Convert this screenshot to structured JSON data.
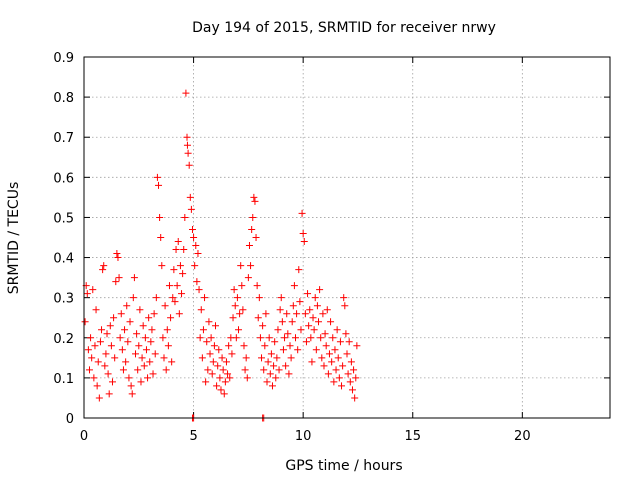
{
  "chart_data": {
    "type": "scatter",
    "title": "Day 194 of 2015, SRMTID for receiver nrwy",
    "xlabel": "GPS time / hours",
    "ylabel": "SRMTID / TECUs",
    "xlim": [
      0,
      24
    ],
    "ylim": [
      0,
      0.9
    ],
    "xticks": [
      0,
      5,
      10,
      15,
      20
    ],
    "xtick_labels": [
      "0",
      "5",
      "10",
      "15",
      "20"
    ],
    "yticks": [
      0,
      0.1,
      0.2,
      0.3,
      0.4,
      0.5,
      0.6,
      0.7,
      0.8,
      0.9
    ],
    "ytick_labels": [
      "0",
      "0.1",
      "0.2",
      "0.3",
      "0.4",
      "0.5",
      "0.6",
      "0.7",
      "0.8",
      "0.9"
    ],
    "grid": true,
    "marker": "+",
    "color": "#ff0000",
    "series": [
      {
        "name": "SRMTID",
        "points": [
          [
            0.05,
            0.24
          ],
          [
            0.1,
            0.33
          ],
          [
            0.15,
            0.31
          ],
          [
            0.2,
            0.17
          ],
          [
            0.25,
            0.12
          ],
          [
            0.3,
            0.2
          ],
          [
            0.35,
            0.15
          ],
          [
            0.4,
            0.32
          ],
          [
            0.45,
            0.1
          ],
          [
            0.5,
            0.18
          ],
          [
            0.55,
            0.27
          ],
          [
            0.6,
            0.08
          ],
          [
            0.65,
            0.14
          ],
          [
            0.7,
            0.05
          ],
          [
            0.75,
            0.19
          ],
          [
            0.8,
            0.22
          ],
          [
            0.85,
            0.37
          ],
          [
            0.9,
            0.38
          ],
          [
            0.95,
            0.13
          ],
          [
            1.0,
            0.16
          ],
          [
            1.05,
            0.21
          ],
          [
            1.1,
            0.11
          ],
          [
            1.15,
            0.06
          ],
          [
            1.2,
            0.23
          ],
          [
            1.25,
            0.18
          ],
          [
            1.3,
            0.09
          ],
          [
            1.35,
            0.25
          ],
          [
            1.4,
            0.15
          ],
          [
            1.45,
            0.34
          ],
          [
            1.5,
            0.41
          ],
          [
            1.55,
            0.4
          ],
          [
            1.6,
            0.35
          ],
          [
            1.65,
            0.2
          ],
          [
            1.7,
            0.26
          ],
          [
            1.75,
            0.17
          ],
          [
            1.8,
            0.12
          ],
          [
            1.85,
            0.22
          ],
          [
            1.9,
            0.14
          ],
          [
            1.95,
            0.28
          ],
          [
            2.0,
            0.19
          ],
          [
            2.05,
            0.1
          ],
          [
            2.1,
            0.24
          ],
          [
            2.15,
            0.08
          ],
          [
            2.2,
            0.06
          ],
          [
            2.25,
            0.3
          ],
          [
            2.3,
            0.35
          ],
          [
            2.35,
            0.16
          ],
          [
            2.4,
            0.21
          ],
          [
            2.45,
            0.12
          ],
          [
            2.5,
            0.18
          ],
          [
            2.55,
            0.27
          ],
          [
            2.6,
            0.09
          ],
          [
            2.65,
            0.15
          ],
          [
            2.7,
            0.23
          ],
          [
            2.75,
            0.13
          ],
          [
            2.8,
            0.2
          ],
          [
            2.85,
            0.17
          ],
          [
            2.9,
            0.1
          ],
          [
            2.95,
            0.25
          ],
          [
            3.0,
            0.14
          ],
          [
            3.05,
            0.19
          ],
          [
            3.1,
            0.22
          ],
          [
            3.15,
            0.11
          ],
          [
            3.2,
            0.26
          ],
          [
            3.25,
            0.16
          ],
          [
            3.3,
            0.3
          ],
          [
            3.35,
            0.6
          ],
          [
            3.4,
            0.58
          ],
          [
            3.45,
            0.5
          ],
          [
            3.5,
            0.45
          ],
          [
            3.55,
            0.38
          ],
          [
            3.6,
            0.2
          ],
          [
            3.65,
            0.15
          ],
          [
            3.7,
            0.28
          ],
          [
            3.75,
            0.12
          ],
          [
            3.8,
            0.22
          ],
          [
            3.85,
            0.18
          ],
          [
            3.9,
            0.33
          ],
          [
            3.95,
            0.25
          ],
          [
            4.0,
            0.14
          ],
          [
            4.05,
            0.3
          ],
          [
            4.1,
            0.37
          ],
          [
            4.15,
            0.29
          ],
          [
            4.2,
            0.42
          ],
          [
            4.25,
            0.33
          ],
          [
            4.3,
            0.44
          ],
          [
            4.35,
            0.26
          ],
          [
            4.4,
            0.38
          ],
          [
            4.45,
            0.31
          ],
          [
            4.5,
            0.36
          ],
          [
            4.55,
            0.42
          ],
          [
            4.6,
            0.5
          ],
          [
            4.65,
            0.81
          ],
          [
            4.7,
            0.7
          ],
          [
            4.72,
            0.68
          ],
          [
            4.75,
            0.66
          ],
          [
            4.8,
            0.63
          ],
          [
            4.85,
            0.55
          ],
          [
            4.9,
            0.52
          ],
          [
            4.95,
            0.47
          ],
          [
            5.0,
            0.45
          ],
          [
            5.05,
            0.38
          ],
          [
            5.1,
            0.43
          ],
          [
            5.15,
            0.34
          ],
          [
            5.2,
            0.41
          ],
          [
            5.25,
            0.32
          ],
          [
            5.3,
            0.2
          ],
          [
            5.35,
            0.27
          ],
          [
            5.4,
            0.15
          ],
          [
            5.45,
            0.22
          ],
          [
            5.5,
            0.3
          ],
          [
            5.55,
            0.09
          ],
          [
            5.6,
            0.19
          ],
          [
            5.65,
            0.12
          ],
          [
            5.7,
            0.24
          ],
          [
            5.75,
            0.16
          ],
          [
            5.8,
            0.2
          ],
          [
            5.85,
            0.11
          ],
          [
            5.9,
            0.14
          ],
          [
            5.95,
            0.18
          ],
          [
            6.0,
            0.23
          ],
          [
            6.05,
            0.08
          ],
          [
            6.1,
            0.13
          ],
          [
            6.15,
            0.17
          ],
          [
            6.2,
            0.1
          ],
          [
            6.25,
            0.07
          ],
          [
            6.3,
            0.15
          ],
          [
            6.35,
            0.12
          ],
          [
            6.4,
            0.06
          ],
          [
            6.45,
            0.09
          ],
          [
            6.5,
            0.14
          ],
          [
            6.55,
            0.11
          ],
          [
            6.6,
            0.18
          ],
          [
            6.65,
            0.1
          ],
          [
            6.7,
            0.2
          ],
          [
            6.75,
            0.16
          ],
          [
            6.8,
            0.25
          ],
          [
            6.85,
            0.32
          ],
          [
            6.9,
            0.28
          ],
          [
            6.95,
            0.2
          ],
          [
            7.0,
            0.3
          ],
          [
            7.05,
            0.22
          ],
          [
            7.1,
            0.26
          ],
          [
            7.15,
            0.38
          ],
          [
            7.2,
            0.33
          ],
          [
            7.25,
            0.27
          ],
          [
            7.3,
            0.18
          ],
          [
            7.35,
            0.12
          ],
          [
            7.4,
            0.15
          ],
          [
            7.45,
            0.1
          ],
          [
            7.5,
            0.35
          ],
          [
            7.55,
            0.43
          ],
          [
            7.6,
            0.38
          ],
          [
            7.65,
            0.47
          ],
          [
            7.7,
            0.5
          ],
          [
            7.75,
            0.55
          ],
          [
            7.8,
            0.54
          ],
          [
            7.85,
            0.45
          ],
          [
            7.9,
            0.33
          ],
          [
            7.95,
            0.25
          ],
          [
            8.0,
            0.3
          ],
          [
            8.05,
            0.2
          ],
          [
            8.1,
            0.15
          ],
          [
            8.15,
            0.23
          ],
          [
            8.2,
            0.12
          ],
          [
            8.25,
            0.18
          ],
          [
            8.3,
            0.26
          ],
          [
            8.35,
            0.09
          ],
          [
            8.4,
            0.14
          ],
          [
            8.45,
            0.2
          ],
          [
            8.5,
            0.11
          ],
          [
            8.55,
            0.16
          ],
          [
            8.6,
            0.08
          ],
          [
            8.65,
            0.13
          ],
          [
            8.7,
            0.19
          ],
          [
            8.75,
            0.1
          ],
          [
            8.8,
            0.15
          ],
          [
            8.85,
            0.22
          ],
          [
            8.9,
            0.12
          ],
          [
            8.95,
            0.27
          ],
          [
            9.0,
            0.3
          ],
          [
            9.05,
            0.24
          ],
          [
            9.1,
            0.17
          ],
          [
            9.15,
            0.2
          ],
          [
            9.2,
            0.13
          ],
          [
            9.25,
            0.26
          ],
          [
            9.3,
            0.21
          ],
          [
            9.35,
            0.11
          ],
          [
            9.4,
            0.18
          ],
          [
            9.45,
            0.15
          ],
          [
            9.5,
            0.24
          ],
          [
            9.55,
            0.28
          ],
          [
            9.6,
            0.33
          ],
          [
            9.65,
            0.2
          ],
          [
            9.7,
            0.26
          ],
          [
            9.75,
            0.17
          ],
          [
            9.8,
            0.37
          ],
          [
            9.85,
            0.29
          ],
          [
            9.9,
            0.22
          ],
          [
            9.95,
            0.51
          ],
          [
            10.0,
            0.46
          ],
          [
            10.05,
            0.44
          ],
          [
            10.1,
            0.26
          ],
          [
            10.15,
            0.19
          ],
          [
            10.2,
            0.31
          ],
          [
            10.25,
            0.23
          ],
          [
            10.3,
            0.27
          ],
          [
            10.35,
            0.2
          ],
          [
            10.4,
            0.14
          ],
          [
            10.45,
            0.25
          ],
          [
            10.5,
            0.22
          ],
          [
            10.55,
            0.3
          ],
          [
            10.6,
            0.17
          ],
          [
            10.65,
            0.28
          ],
          [
            10.7,
            0.24
          ],
          [
            10.75,
            0.32
          ],
          [
            10.8,
            0.2
          ],
          [
            10.85,
            0.15
          ],
          [
            10.9,
            0.26
          ],
          [
            10.95,
            0.13
          ],
          [
            11.0,
            0.21
          ],
          [
            11.05,
            0.18
          ],
          [
            11.1,
            0.27
          ],
          [
            11.15,
            0.11
          ],
          [
            11.2,
            0.16
          ],
          [
            11.25,
            0.24
          ],
          [
            11.3,
            0.14
          ],
          [
            11.35,
            0.2
          ],
          [
            11.4,
            0.09
          ],
          [
            11.45,
            0.17
          ],
          [
            11.5,
            0.12
          ],
          [
            11.55,
            0.22
          ],
          [
            11.6,
            0.15
          ],
          [
            11.65,
            0.1
          ],
          [
            11.7,
            0.19
          ],
          [
            11.75,
            0.08
          ],
          [
            11.8,
            0.13
          ],
          [
            11.85,
            0.3
          ],
          [
            11.9,
            0.28
          ],
          [
            11.95,
            0.21
          ],
          [
            12.0,
            0.16
          ],
          [
            12.05,
            0.11
          ],
          [
            12.1,
            0.19
          ],
          [
            12.15,
            0.09
          ],
          [
            12.2,
            0.14
          ],
          [
            12.25,
            0.07
          ],
          [
            12.3,
            0.12
          ],
          [
            12.35,
            0.05
          ],
          [
            12.4,
            0.1
          ],
          [
            12.45,
            0.18
          ],
          [
            4.95,
            0.0
          ],
          [
            5.0,
            0.0
          ],
          [
            8.15,
            0.0
          ],
          [
            8.2,
            0.0
          ]
        ]
      }
    ]
  }
}
